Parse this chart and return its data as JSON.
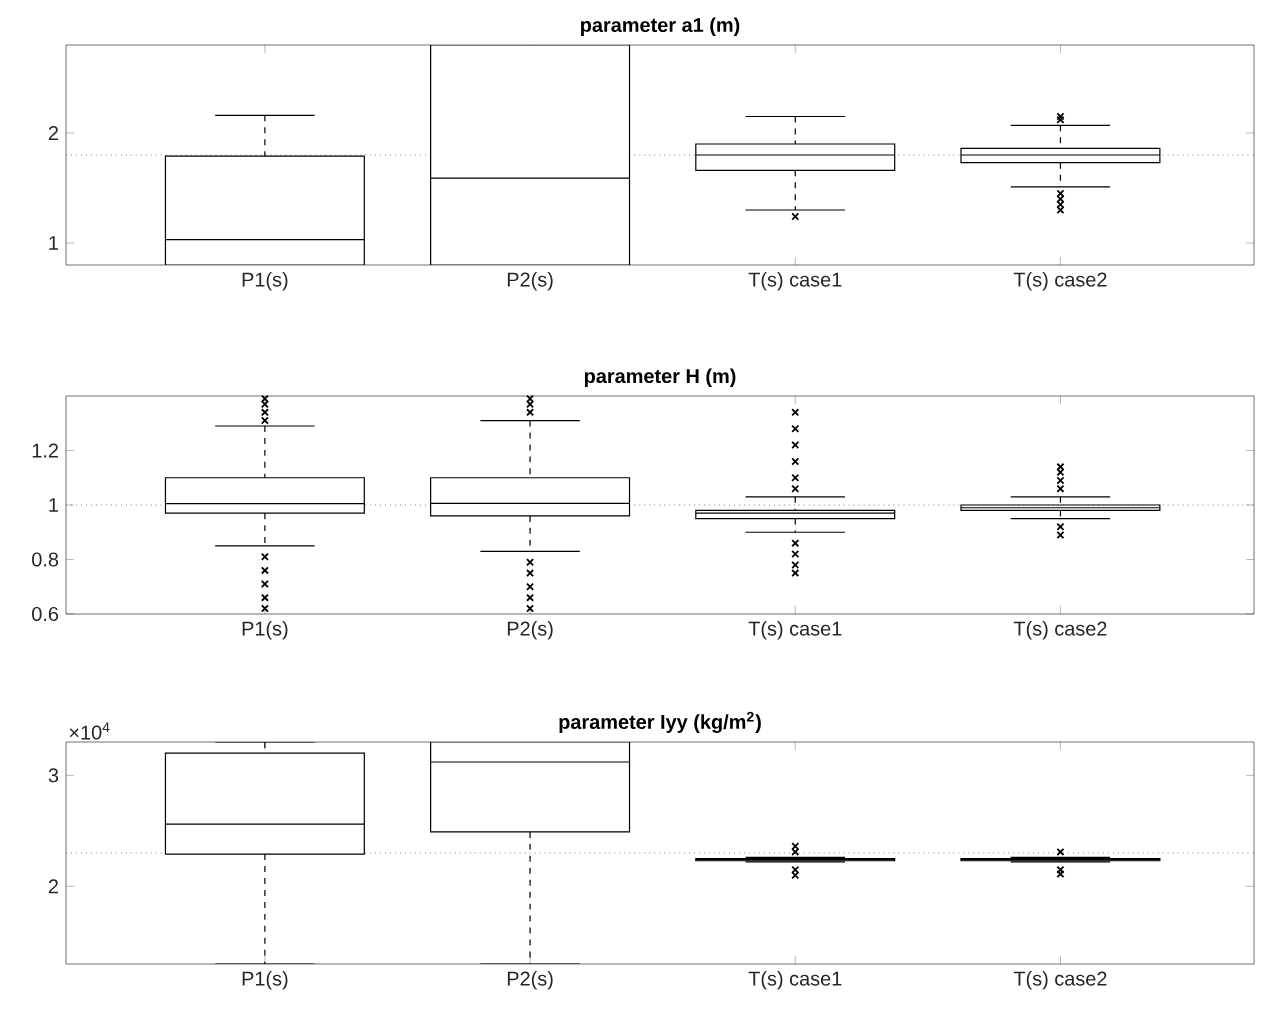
{
  "chart_data": [
    {
      "type": "box",
      "title": "parameter a1 (m)",
      "categories": [
        "P1(s)",
        "P2(s)",
        "T(s) case1",
        "T(s) case2"
      ],
      "ylim": [
        0.8,
        2.8
      ],
      "yticks": [
        1,
        2
      ],
      "marker": "cross",
      "boxes": [
        {
          "low": 0.8,
          "q1": 0.8,
          "median": 1.03,
          "q3": 1.79,
          "high": 2.16
        },
        {
          "low": 0.8,
          "q1": 0.8,
          "median": 1.59,
          "q3": 2.8,
          "high": 2.8
        },
        {
          "low": 1.3,
          "q1": 1.66,
          "median": 1.8,
          "q3": 1.9,
          "high": 2.15,
          "outliers": [
            1.24
          ]
        },
        {
          "low": 1.51,
          "q1": 1.73,
          "median": 1.8,
          "q3": 1.86,
          "high": 2.07,
          "outliers": [
            2.12,
            2.15,
            1.3,
            1.35,
            1.4,
            1.45
          ]
        }
      ],
      "ref_lines": [
        {
          "axis": "y",
          "value": 1.8,
          "color": "#808080",
          "line_style": "dotted"
        }
      ]
    },
    {
      "type": "box",
      "title": "parameter H (m)",
      "categories": [
        "P1(s)",
        "P2(s)",
        "T(s) case1",
        "T(s) case2"
      ],
      "ylim": [
        0.6,
        1.4
      ],
      "yticks": [
        0.6,
        0.8,
        1,
        1.2
      ],
      "marker": "cross",
      "boxes": [
        {
          "low": 0.85,
          "q1": 0.97,
          "median": 1.005,
          "q3": 1.1,
          "high": 1.29,
          "outliers": [
            1.31,
            1.34,
            1.37,
            1.39,
            0.81,
            0.76,
            0.71,
            0.66,
            0.62
          ]
        },
        {
          "low": 0.83,
          "q1": 0.96,
          "median": 1.006,
          "q3": 1.1,
          "high": 1.31,
          "outliers": [
            1.34,
            1.37,
            1.39,
            0.79,
            0.75,
            0.7,
            0.66,
            0.62
          ]
        },
        {
          "low": 0.9,
          "q1": 0.95,
          "median": 0.97,
          "q3": 0.98,
          "high": 1.03,
          "outliers": [
            1.06,
            1.1,
            1.16,
            1.22,
            1.28,
            1.34,
            0.86,
            0.82,
            0.78,
            0.75
          ]
        },
        {
          "low": 0.95,
          "q1": 0.98,
          "median": 0.99,
          "q3": 1.0,
          "high": 1.03,
          "outliers": [
            1.06,
            1.09,
            1.12,
            1.14,
            0.92,
            0.89
          ]
        }
      ],
      "ref_lines": [
        {
          "axis": "y",
          "value": 1,
          "color": "#808080",
          "line_style": "dotted"
        }
      ]
    },
    {
      "type": "box",
      "title": "parameter Iyy (kg/m$^{2}$)",
      "categories": [
        "P1(s)",
        "P2(s)",
        "T(s) case1",
        "T(s) case2"
      ],
      "ylim": [
        1.3,
        3.3
      ],
      "yticks": [
        2,
        3
      ],
      "marker": "cross",
      "annotations": [
        "×10$^{4}$"
      ],
      "boxes": [
        {
          "low": 1.3,
          "q1": 2.29,
          "median": 2.56,
          "q3": 3.2,
          "high": 3.3
        },
        {
          "low": 1.3,
          "q1": 2.49,
          "median": 3.12,
          "q3": 3.3,
          "high": 3.3
        },
        {
          "low": 2.22,
          "q1": 2.23,
          "median": 2.24,
          "q3": 2.25,
          "high": 2.26,
          "outliers": [
            2.1,
            2.15,
            2.31,
            2.36
          ]
        },
        {
          "low": 2.22,
          "q1": 2.23,
          "median": 2.24,
          "q3": 2.25,
          "high": 2.26,
          "outliers": [
            2.11,
            2.15,
            2.31
          ]
        }
      ],
      "ref_lines": [
        {
          "axis": "y",
          "value": 2.3,
          "color": "#808080",
          "line_style": "dotted"
        }
      ]
    }
  ]
}
